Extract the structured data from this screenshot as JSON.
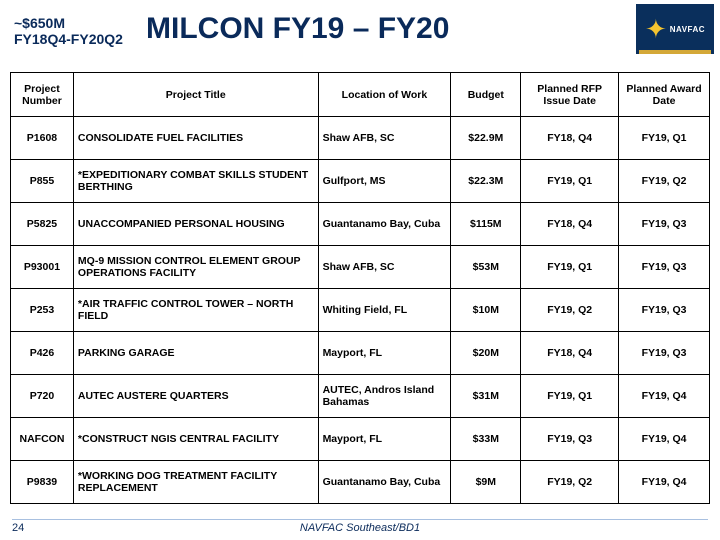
{
  "header": {
    "budget": "~$650M",
    "period": "FY18Q4-FY20Q2",
    "title": "MILCON FY19 – FY20",
    "logo_text": "NAVFAC"
  },
  "table": {
    "columns": [
      "Project Number",
      "Project Title",
      "Location of Work",
      "Budget",
      "Planned RFP Issue Date",
      "Planned Award Date"
    ],
    "rows": [
      [
        "P1608",
        "CONSOLIDATE FUEL FACILITIES",
        "Shaw AFB, SC",
        "$22.9M",
        "FY18, Q4",
        "FY19, Q1"
      ],
      [
        "P855",
        "*EXPEDITIONARY COMBAT SKILLS STUDENT BERTHING",
        "Gulfport, MS",
        "$22.3M",
        "FY19, Q1",
        "FY19, Q2"
      ],
      [
        "P5825",
        "UNACCOMPANIED PERSONAL HOUSING",
        "Guantanamo Bay, Cuba",
        "$115M",
        "FY18, Q4",
        "FY19, Q3"
      ],
      [
        "P93001",
        "MQ-9 MISSION CONTROL ELEMENT GROUP OPERATIONS FACILITY",
        "Shaw AFB, SC",
        "$53M",
        "FY19, Q1",
        "FY19, Q3"
      ],
      [
        "P253",
        "*AIR TRAFFIC CONTROL TOWER – NORTH FIELD",
        "Whiting Field, FL",
        "$10M",
        "FY19, Q2",
        "FY19, Q3"
      ],
      [
        "P426",
        "PARKING GARAGE",
        "Mayport, FL",
        "$20M",
        "FY18, Q4",
        "FY19, Q3"
      ],
      [
        "P720",
        "AUTEC AUSTERE QUARTERS",
        "AUTEC, Andros Island Bahamas",
        "$31M",
        "FY19, Q1",
        "FY19, Q4"
      ],
      [
        "NAFCON",
        "*CONSTRUCT NGIS CENTRAL FACILITY",
        "Mayport, FL",
        "$33M",
        "FY19, Q3",
        "FY19, Q4"
      ],
      [
        "P9839",
        "*WORKING DOG TREATMENT FACILITY REPLACEMENT",
        "Guantanamo Bay, Cuba",
        "$9M",
        "FY19, Q2",
        "FY19, Q4"
      ]
    ]
  },
  "footer": {
    "page": "24",
    "center": "NAVFAC Southeast/BD1"
  }
}
